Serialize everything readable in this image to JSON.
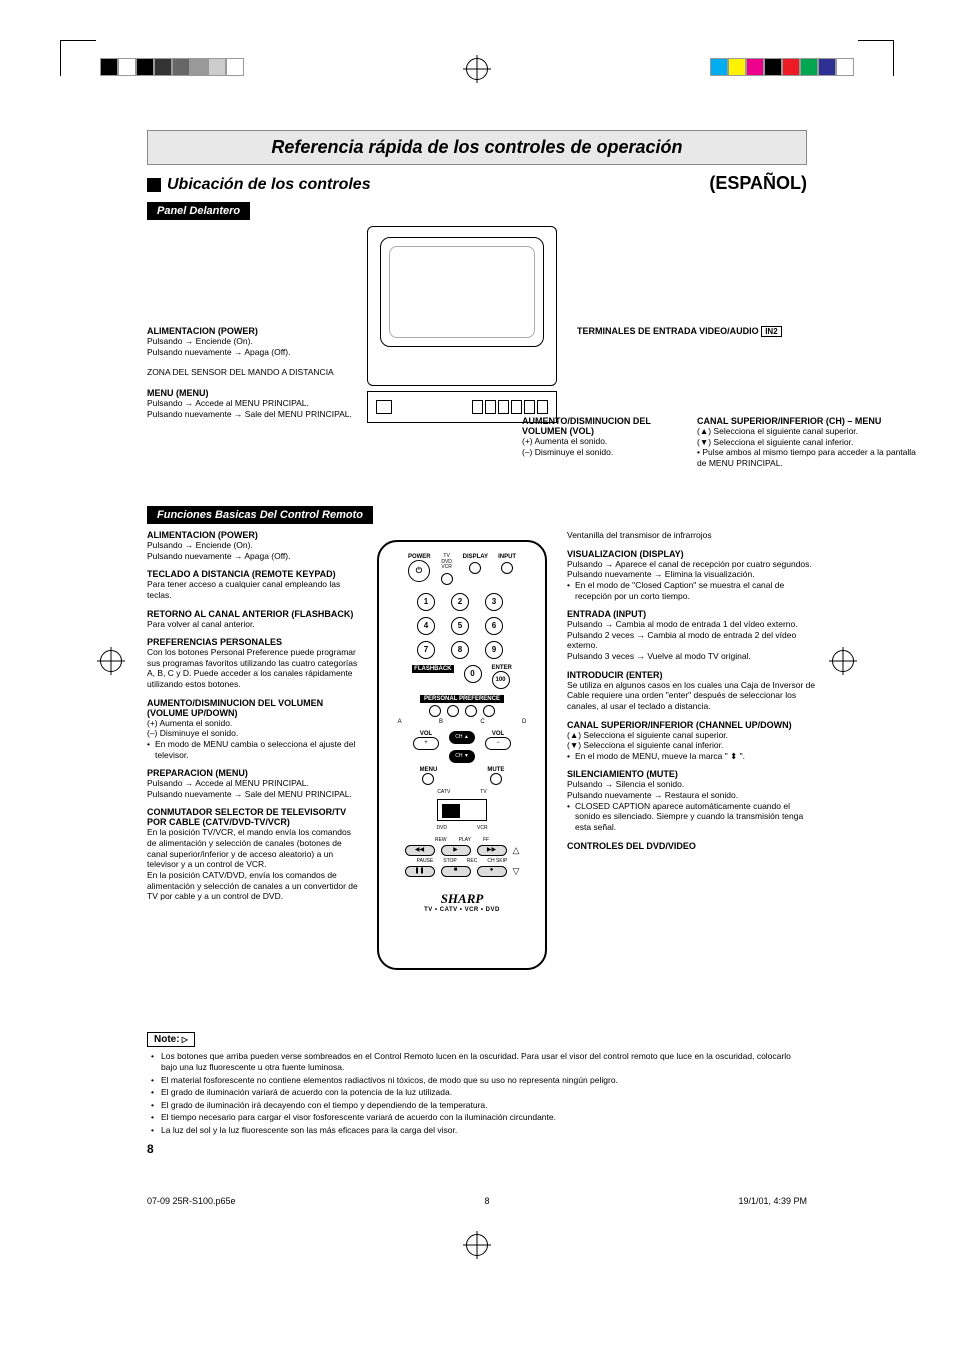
{
  "colorbars": {
    "left": [
      "#000000",
      "#ffffff",
      "#000000",
      "#333333",
      "#666666",
      "#999999",
      "#cccccc",
      "#ffffff"
    ],
    "right": [
      "#00aeef",
      "#fff200",
      "#ec008c",
      "#000000",
      "#ed1c24",
      "#00a651",
      "#2e3192",
      "#ffffff"
    ]
  },
  "title": "Referencia rápida de los controles de operación",
  "subhead_left": "Ubicación de los controles",
  "subhead_right": "(ESPAÑOL)",
  "panel_label": "Panel Delantero",
  "front": {
    "power_t": "ALIMENTACION (POWER)",
    "power_b1": "Pulsando → Enciende (On).",
    "power_b2": "Pulsando nuevamente → Apaga (Off).",
    "sensor": "ZONA DEL SENSOR DEL MANDO A DISTANCIA",
    "menu_t": "MENU (MENU)",
    "menu_b1": "Pulsando → Accede al MENU PRINCIPAL.",
    "menu_b2": "Pulsando nuevamente → Sale del MENU PRINCIPAL.",
    "term_t": "TERMINALES DE ENTRADA VIDEO/AUDIO",
    "in2": "IN2",
    "vol_t": "AUMENTO/DISMINUCION DEL VOLUMEN (VOL)",
    "vol_b1": "(+) Aumenta el sonido.",
    "vol_b2": "(–) Disminuye el sonido.",
    "ch_t": "CANAL SUPERIOR/INFERIOR (CH) – MENU",
    "ch_b1": "(▲) Selecciona el siguiente canal superior.",
    "ch_b2": "(▼) Selecciona el siguiente canal inferior.",
    "ch_b3": "• Pulse ambos al mismo tiempo para acceder a la pantalla de MENU PRINCIPAL."
  },
  "remote_label": "Funciones Basicas Del Control Remoto",
  "left": {
    "s1_t": "ALIMENTACION (POWER)",
    "s1_1": "Pulsando → Enciende (On).",
    "s1_2": "Pulsando nuevamente → Apaga (Off).",
    "s2_t": "TECLADO A DISTANCIA (REMOTE KEYPAD)",
    "s2_1": "Para tener acceso a cualquier canal empleando las teclas.",
    "s3_t": "RETORNO AL CANAL ANTERIOR (FLASHBACK)",
    "s3_1": "Para volver al canal anterior.",
    "s4_t": "PREFERENCIAS PERSONALES",
    "s4_1": "Con los botones Personal Preference puede programar sus programas favoritos utilizando las cuatro categorías A, B, C y D. Puede acceder a los canales rápidamente utilizando estos botones.",
    "s5_t": "AUMENTO/DISMINUCION DEL VOLUMEN (VOLUME UP/DOWN)",
    "s5_1": "(+) Aumenta el sonido.",
    "s5_2": "(–) Disminuye el sonido.",
    "s5_3": "En modo de MENU cambia o selecciona el ajuste del televisor.",
    "s6_t": "PREPARACION (MENU)",
    "s6_1": "Pulsando → Accede al MENU PRINCIPAL.",
    "s6_2": "Pulsando nuevamente → Sale del MENU PRINCIPAL.",
    "s7_t": "CONMUTADOR SELECTOR DE TELEVISOR/TV POR CABLE (CATV/DVD-TV/VCR)",
    "s7_1": "En la posición TV/VCR, el mando envía los comandos de alimentación y selección de canales (botones de canal superior/inferior y de acceso aleatorio) a un televisor y a un control de VCR.",
    "s7_2": "En la posición CATV/DVD, envía los comandos de alimentación y selección de canales a un convertidor de TV por cable y a un control de DVD."
  },
  "right": {
    "s0": "Ventanilla del transmisor de infrarrojos",
    "s1_t": "VISUALIZACION (DISPLAY)",
    "s1_1": "Pulsando → Aparece el canal de recepción por cuatro segundos.",
    "s1_2": "Pulsando nuevamente → Elimina la visualización.",
    "s1_3": "En el modo de \"Closed Caption\" se muestra el canal de recepción por un corto tiempo.",
    "s2_t": "ENTRADA (INPUT)",
    "s2_1": "Pulsando → Cambia al modo de entrada 1 del vídeo externo.",
    "s2_2": "Pulsando 2 veces → Cambia al modo de entrada 2 del vídeo externo.",
    "s2_3": "Pulsando 3 veces → Vuelve al modo TV original.",
    "s3_t": "INTRODUCIR (ENTER)",
    "s3_1": "Se utiliza en algunos casos en los cuales una Caja de Inversor de Cable requiere una orden \"enter\" después de seleccionar los canales, al usar el teclado a distancia.",
    "s4_t": "CANAL SUPERIOR/INFERIOR (CHANNEL UP/DOWN)",
    "s4_1": "(▲)  Selecciona el siguiente canal superior.",
    "s4_2": "(▼)  Selecciona el siguiente canal inferior.",
    "s4_3": "En el modo de MENU, mueve la marca \" ⬍ \".",
    "s5_t": "SILENCIAMIENTO (MUTE)",
    "s5_1": "Pulsando → Silencia el sonido.",
    "s5_2": "Pulsando nuevamente → Restaura el sonido.",
    "s5_3": "CLOSED CAPTION aparece automáticamente cuando el sonido es silenciado. Siempre y cuando la transmisión tenga esta señal.",
    "s6_t": "CONTROLES DEL DVD/VIDEO"
  },
  "remote": {
    "power": "POWER",
    "tv": "TV",
    "dvd": "DVD",
    "vcr": "VCR",
    "display": "DISPLAY",
    "input": "INPUT",
    "flashback": "FLASHBACK",
    "enter": "ENTER",
    "hundred": "100",
    "pp": "PERSONAL PREFERENCE",
    "a": "A",
    "b": "B",
    "c": "C",
    "d": "D",
    "vol": "VOL",
    "ch_up": "CH ▲",
    "ch_dn": "CH ▼",
    "menu": "MENU",
    "mute": "MUTE",
    "catv": "CATV",
    "tv2": "TV",
    "dvd2": "DVD",
    "vcr2": "VCR",
    "rew": "REW",
    "play": "PLAY",
    "ff": "FF",
    "pause": "PAUSE",
    "stop": "STOP",
    "rec": "REC",
    "chskip": "CH SKIP",
    "brand": "SHARP",
    "brand_sub": "TV • CATV • VCR • DVD"
  },
  "note_label": "Note:",
  "notes": [
    "Los botones que arriba pueden verse sombreados en el Control Remoto lucen en la oscuridad. Para usar el visor del control remoto que luce en la oscuridad, colocarlo  bajo una luz fluorescente u otra fuente luminosa.",
    "El material fosforescente no contiene elementos radiactivos ni tóxicos, de modo que su uso no representa ningún peligro.",
    "El grado de iluminación variará de acuerdo con la potencia de la luz utilizada.",
    "El grado de iluminación irá decayendo con el tiempo y dependiendo de la temperatura.",
    "El tiempo necesario para cargar el visor fosforescente variará de acuerdo con la iluminación circundante.",
    "La luz del sol y la luz fluorescente son las más eficaces para la carga del visor."
  ],
  "page_num": "8",
  "footer": {
    "file": "07-09 25R-S100.p65e",
    "page": "8",
    "date": "19/1/01, 4:39 PM"
  }
}
